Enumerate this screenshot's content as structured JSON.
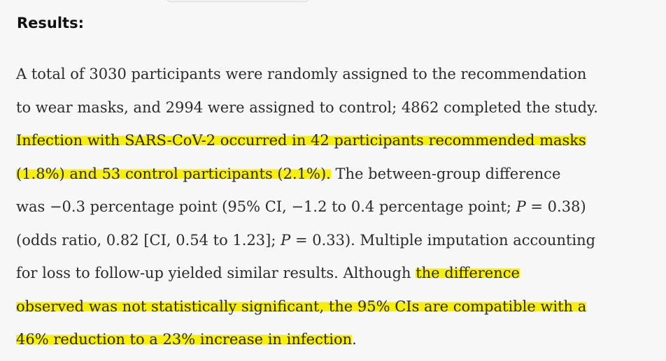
{
  "section": {
    "heading": "Results:"
  },
  "paragraph": {
    "line1": "A total of 3030 participants were randomly assigned to the recommendation",
    "line2": "to wear masks, and 2994 were assigned to control; 4862 completed the study.",
    "line3": "Infection with SARS-CoV-2 occurred in 42 participants recommended masks",
    "line4_highlighted": "(1.8%) and 53 control participants (2.1%).",
    "line4_rest": " The between-group difference",
    "line5_a": "was −0.3 percentage point (95% CI, −1.2 to 0.4 percentage point; ",
    "line5_p": "P",
    "line5_b": " = 0.38)",
    "line6_a": "(odds ratio, 0.82 [CI, 0.54 to 1.23]; ",
    "line6_p": "P",
    "line6_b": " = 0.33). Multiple imputation accounting",
    "line7_plain": "for loss to follow-up yielded similar results. Although ",
    "line7_highlighted": "the difference",
    "line8": "observed was not statistically significant, the 95% CIs are compatible with a",
    "line9_highlighted": "46% reduction to a 23% increase in infection",
    "line9_end": "."
  },
  "highlight_color": "#f9ef0c"
}
